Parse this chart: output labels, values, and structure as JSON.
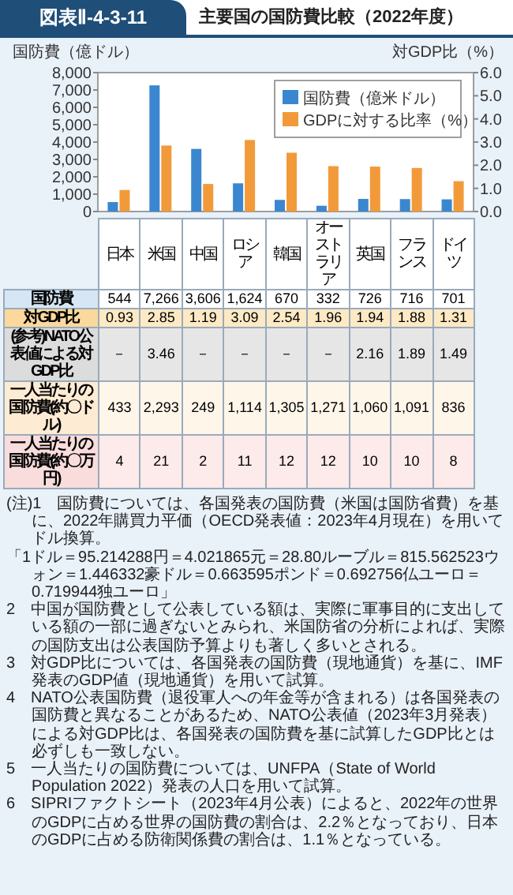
{
  "chart_data": {
    "type": "bar",
    "subtitle": "図表Ⅱ-4-3-11",
    "title": "主要国の国防費比較（2022年度）",
    "ylabel": "国防費（億ドル）",
    "y2label": "対GDP比（%）",
    "categories": [
      "日本",
      "米国",
      "中国",
      "ロシア",
      "韓国",
      "オーストラリア",
      "英国",
      "フランス",
      "ドイツ"
    ],
    "series": [
      {
        "name": "国防費（億米ドル）",
        "color": "#3a87d0",
        "values": [
          544,
          7266,
          3606,
          1624,
          670,
          332,
          726,
          716,
          701
        ]
      },
      {
        "name": "GDPに対する比率（%）",
        "color": "#f29a3a",
        "axis": "y2",
        "values": [
          0.93,
          2.85,
          1.19,
          3.09,
          2.54,
          1.96,
          1.94,
          1.88,
          1.31
        ]
      }
    ],
    "ylim": [
      0,
      8000
    ],
    "yticks": [
      0,
      {
        "value": 1000,
        "label": "1,000"
      },
      {
        "value": 2000,
        "label": "2,000"
      },
      {
        "value": 3000,
        "label": "3,000"
      },
      {
        "value": 4000,
        "label": "4,000"
      },
      {
        "value": 5000,
        "label": "5,000"
      },
      {
        "value": 6000,
        "label": "6,000"
      },
      {
        "value": 7000,
        "label": "7,000"
      },
      {
        "value": 8000,
        "label": "8,000"
      }
    ],
    "y2lim": [
      0,
      6
    ],
    "y2ticks": [
      {
        "value": 0,
        "label": "0.0"
      },
      {
        "value": 1,
        "label": "1.0"
      },
      {
        "value": 2,
        "label": "2.0"
      },
      {
        "value": 3,
        "label": "3.0"
      },
      {
        "value": 4,
        "label": "4.0"
      },
      {
        "value": 5,
        "label": "5.0"
      },
      {
        "value": 6,
        "label": "6.0"
      }
    ],
    "legend": "top right",
    "annotations": [
      "国防費",
      "544",
      "7,266",
      "3,606",
      "1,624",
      "670",
      "332",
      "726",
      "716",
      "701",
      "対GDP比",
      "0.93",
      "2.85",
      "1.19",
      "3.09",
      "2.54",
      "1.96",
      "1.94",
      "1.88",
      "1.31",
      "(参考)NATO公表値による対GDP比",
      "－",
      "3.46",
      "－",
      "－",
      "－",
      "－",
      "2.16",
      "1.89",
      "1.49",
      "一人当たりの国防費(約〇ドル)",
      "433",
      "2,293",
      "249",
      "1,114",
      "1,305",
      "1,271",
      "1,060",
      "1,091",
      "836",
      "一人当たりの国防費(約〇万円)",
      "4",
      "21",
      "2",
      "11",
      "12",
      "12",
      "10",
      "10",
      "8",
      "(注)1　国防費については、各国発表の国防費（米国は国防省費）を基に、2022年購買力平価（OECD発表値：2023年4月現在）を用いてドル換算。",
      "「1ドル＝95.214288円＝4.021865元＝28.80ルーブル＝815.562523ウォン＝1.446332豪ドル＝0.663595ポンド＝0.692756仏ユーロ＝0.719944独ユーロ」",
      "2　中国が国防費として公表している額は、実際に軍事目的に支出している額の一部に過ぎないとみられ、米国防省の分析によれば、実際の国防支出は公表国防予算よりも著しく多いとされる。",
      "3　対GDP比については、各国発表の国防費（現地通貨）を基に、IMF発表のGDP値（現地通貨）を用いて試算。",
      "4　NATO公表国防費（退役軍人への年金等が含まれる）は各国発表の国防費と異なることがあるため、NATO公表値（2023年3月発表）による対GDP比は、各国発表の国防費を基に試算したGDP比とは必ずしも一致しない。",
      "5　一人当たりの国防費については、UNFPA（State of World Population 2022）発表の人口を用いて試算。",
      "6　SIPRIファクトシート（2023年4月公表）によると、2022年の世界のGDPに占める世界の国防費の割合は、2.2％となっており、日本のGDPに占める防衛関係費の割合は、1.1％となっている。"
    ]
  }
}
